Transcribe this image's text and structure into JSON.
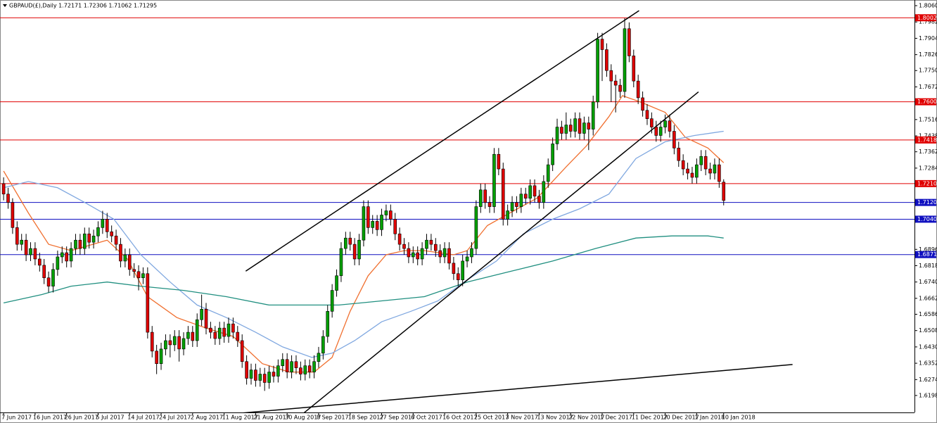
{
  "chart_data": {
    "type": "candlestick",
    "title": "GBPAUD(£),Daily  1.72171 1.72306 1.71062 1.71295",
    "xlim": [
      -0.8,
      202.4
    ],
    "ylim": [
      1.6117,
      1.8087
    ],
    "yticks": [
      {
        "value": 1.806,
        "label": "1.80600"
      },
      {
        "value": 1.7982,
        "label": "1.79820"
      },
      {
        "value": 1.7904,
        "label": "1.79040"
      },
      {
        "value": 1.7826,
        "label": "1.78260"
      },
      {
        "value": 1.775,
        "label": "1.77500"
      },
      {
        "value": 1.7672,
        "label": "1.76720"
      },
      {
        "value": 1.7516,
        "label": "1.75160"
      },
      {
        "value": 1.7438,
        "label": "1.74380"
      },
      {
        "value": 1.7362,
        "label": "1.73620"
      },
      {
        "value": 1.7284,
        "label": "1.72840"
      },
      {
        "value": 1.6896,
        "label": "1.68960"
      },
      {
        "value": 1.6818,
        "label": "1.68180"
      },
      {
        "value": 1.674,
        "label": "1.67400"
      },
      {
        "value": 1.6662,
        "label": "1.66620"
      },
      {
        "value": 1.6586,
        "label": "1.65860"
      },
      {
        "value": 1.6508,
        "label": "1.65080"
      },
      {
        "value": 1.643,
        "label": "1.64300"
      },
      {
        "value": 1.6352,
        "label": "1.63520"
      },
      {
        "value": 1.6274,
        "label": "1.62740"
      },
      {
        "value": 1.6198,
        "label": "1.61980"
      }
    ],
    "xticks": [
      {
        "value": 0,
        "label": "7 Jun 2017"
      },
      {
        "value": 7,
        "label": "16 Jun 2017"
      },
      {
        "value": 14,
        "label": "26 Jun 2017"
      },
      {
        "value": 21,
        "label": "5 Jul 2017"
      },
      {
        "value": 28,
        "label": "14 Jul 2017"
      },
      {
        "value": 35,
        "label": "24 Jul 2017"
      },
      {
        "value": 42,
        "label": "2 Aug 2017"
      },
      {
        "value": 49,
        "label": "11 Aug 2017"
      },
      {
        "value": 56,
        "label": "21 Aug 2017"
      },
      {
        "value": 63,
        "label": "30 Aug 2017"
      },
      {
        "value": 70,
        "label": "8 Sep 2017"
      },
      {
        "value": 77,
        "label": "18 Sep 2017"
      },
      {
        "value": 84,
        "label": "27 Sep 2017"
      },
      {
        "value": 91,
        "label": "6 Oct 2017"
      },
      {
        "value": 98,
        "label": "16 Oct 2017"
      },
      {
        "value": 105,
        "label": "25 Oct 2017"
      },
      {
        "value": 112,
        "label": "3 Nov 2017"
      },
      {
        "value": 119,
        "label": "13 Nov 2017"
      },
      {
        "value": 126,
        "label": "22 Nov 2017"
      },
      {
        "value": 133,
        "label": "1 Dec 2017"
      },
      {
        "value": 140,
        "label": "11 Dec 2017"
      },
      {
        "value": 147,
        "label": "20 Dec 2017"
      },
      {
        "value": 154,
        "label": "1 Jan 2018"
      },
      {
        "value": 160,
        "label": "10 Jan 2018"
      }
    ],
    "up_color": "#00a000",
    "down_color": "#e00000",
    "candles": {
      "open": [
        1.721,
        1.716,
        1.712,
        1.7,
        1.692,
        1.694,
        1.687,
        1.69,
        1.685,
        1.682,
        1.676,
        1.672,
        1.68,
        1.686,
        1.688,
        1.684,
        1.69,
        1.694,
        1.69,
        1.697,
        1.693,
        1.696,
        1.7,
        1.704,
        1.698,
        1.696,
        1.692,
        1.684,
        1.687,
        1.68,
        1.679,
        1.676,
        1.678,
        1.65,
        1.641,
        1.635,
        1.642,
        1.646,
        1.644,
        1.648,
        1.642,
        1.647,
        1.65,
        1.646,
        1.656,
        1.661,
        1.652,
        1.65,
        1.647,
        1.652,
        1.648,
        1.654,
        1.65,
        1.646,
        1.636,
        1.628,
        1.632,
        1.627,
        1.63,
        1.626,
        1.631,
        1.629,
        1.634,
        1.637,
        1.631,
        1.636,
        1.633,
        1.63,
        1.634,
        1.631,
        1.636,
        1.64,
        1.648,
        1.66,
        1.67,
        1.677,
        1.69,
        1.695,
        1.692,
        1.685,
        1.694,
        1.71,
        1.7,
        1.703,
        1.699,
        1.706,
        1.708,
        1.704,
        1.697,
        1.692,
        1.69,
        1.686,
        1.688,
        1.685,
        1.69,
        1.694,
        1.692,
        1.689,
        1.686,
        1.69,
        1.683,
        1.678,
        1.675,
        1.684,
        1.686,
        1.69,
        1.71,
        1.718,
        1.712,
        1.71,
        1.735,
        1.728,
        1.704,
        1.708,
        1.712,
        1.71,
        1.716,
        1.714,
        1.72,
        1.715,
        1.712,
        1.722,
        1.73,
        1.74,
        1.748,
        1.745,
        1.749,
        1.746,
        1.752,
        1.745,
        1.75,
        1.747,
        1.76,
        1.79,
        1.785,
        1.775,
        1.77,
        1.768,
        1.765,
        1.795,
        1.782,
        1.77,
        1.762,
        1.756,
        1.752,
        1.748,
        1.744,
        1.748,
        1.751,
        1.746,
        1.738,
        1.732,
        1.728,
        1.726,
        1.724,
        1.73,
        1.734,
        1.728,
        1.726,
        1.73,
        1.72171
      ],
      "high": [
        1.724,
        1.719,
        1.714,
        1.703,
        1.697,
        1.697,
        1.693,
        1.693,
        1.688,
        1.685,
        1.679,
        1.683,
        1.689,
        1.691,
        1.691,
        1.693,
        1.697,
        1.697,
        1.7,
        1.7,
        1.699,
        1.703,
        1.708,
        1.707,
        1.701,
        1.699,
        1.695,
        1.69,
        1.69,
        1.683,
        1.682,
        1.681,
        1.681,
        1.653,
        1.644,
        1.645,
        1.649,
        1.649,
        1.651,
        1.651,
        1.65,
        1.653,
        1.653,
        1.659,
        1.668,
        1.664,
        1.655,
        1.653,
        1.655,
        1.655,
        1.657,
        1.657,
        1.653,
        1.649,
        1.639,
        1.635,
        1.635,
        1.633,
        1.633,
        1.634,
        1.634,
        1.637,
        1.64,
        1.64,
        1.639,
        1.639,
        1.636,
        1.637,
        1.637,
        1.639,
        1.643,
        1.651,
        1.663,
        1.673,
        1.68,
        1.693,
        1.698,
        1.698,
        1.695,
        1.697,
        1.713,
        1.713,
        1.706,
        1.706,
        1.709,
        1.711,
        1.711,
        1.707,
        1.7,
        1.695,
        1.693,
        1.691,
        1.691,
        1.693,
        1.697,
        1.697,
        1.695,
        1.692,
        1.693,
        1.693,
        1.686,
        1.681,
        1.687,
        1.689,
        1.693,
        1.713,
        1.721,
        1.721,
        1.715,
        1.738,
        1.738,
        1.731,
        1.711,
        1.715,
        1.715,
        1.719,
        1.719,
        1.723,
        1.723,
        1.718,
        1.725,
        1.733,
        1.743,
        1.752,
        1.751,
        1.755,
        1.752,
        1.755,
        1.755,
        1.753,
        1.753,
        1.763,
        1.793,
        1.793,
        1.788,
        1.778,
        1.773,
        1.771,
        1.8,
        1.798,
        1.785,
        1.773,
        1.765,
        1.759,
        1.755,
        1.751,
        1.751,
        1.754,
        1.754,
        1.749,
        1.741,
        1.735,
        1.731,
        1.729,
        1.733,
        1.737,
        1.737,
        1.731,
        1.733,
        1.733,
        1.72306
      ],
      "low": [
        1.713,
        1.709,
        1.697,
        1.689,
        1.689,
        1.684,
        1.684,
        1.682,
        1.679,
        1.673,
        1.669,
        1.669,
        1.677,
        1.683,
        1.681,
        1.681,
        1.687,
        1.687,
        1.687,
        1.69,
        1.69,
        1.693,
        1.697,
        1.695,
        1.693,
        1.689,
        1.681,
        1.681,
        1.677,
        1.676,
        1.67,
        1.673,
        1.647,
        1.638,
        1.63,
        1.632,
        1.639,
        1.638,
        1.641,
        1.636,
        1.639,
        1.644,
        1.643,
        1.643,
        1.653,
        1.649,
        1.647,
        1.644,
        1.644,
        1.645,
        1.645,
        1.647,
        1.643,
        1.633,
        1.625,
        1.625,
        1.624,
        1.624,
        1.622,
        1.623,
        1.626,
        1.626,
        1.631,
        1.628,
        1.628,
        1.63,
        1.627,
        1.627,
        1.628,
        1.628,
        1.633,
        1.637,
        1.645,
        1.657,
        1.667,
        1.674,
        1.687,
        1.689,
        1.682,
        1.682,
        1.691,
        1.697,
        1.697,
        1.696,
        1.696,
        1.703,
        1.701,
        1.694,
        1.689,
        1.687,
        1.683,
        1.683,
        1.682,
        1.682,
        1.687,
        1.689,
        1.686,
        1.683,
        1.683,
        1.68,
        1.675,
        1.672,
        1.672,
        1.681,
        1.683,
        1.687,
        1.707,
        1.709,
        1.707,
        1.707,
        1.725,
        1.701,
        1.701,
        1.705,
        1.707,
        1.707,
        1.711,
        1.711,
        1.712,
        1.709,
        1.709,
        1.719,
        1.727,
        1.737,
        1.742,
        1.742,
        1.743,
        1.743,
        1.742,
        1.742,
        1.737,
        1.744,
        1.757,
        1.77,
        1.772,
        1.76,
        1.755,
        1.762,
        1.762,
        1.779,
        1.767,
        1.759,
        1.753,
        1.749,
        1.745,
        1.741,
        1.741,
        1.745,
        1.743,
        1.735,
        1.729,
        1.725,
        1.723,
        1.721,
        1.721,
        1.727,
        1.725,
        1.723,
        1.723,
        1.719,
        1.71062
      ],
      "close": [
        1.716,
        1.712,
        1.7,
        1.692,
        1.694,
        1.687,
        1.69,
        1.685,
        1.682,
        1.676,
        1.672,
        1.68,
        1.686,
        1.688,
        1.684,
        1.69,
        1.694,
        1.69,
        1.697,
        1.693,
        1.696,
        1.7,
        1.704,
        1.698,
        1.696,
        1.692,
        1.684,
        1.687,
        1.68,
        1.679,
        1.676,
        1.678,
        1.65,
        1.641,
        1.635,
        1.642,
        1.646,
        1.644,
        1.648,
        1.642,
        1.647,
        1.65,
        1.646,
        1.656,
        1.661,
        1.652,
        1.65,
        1.647,
        1.652,
        1.648,
        1.654,
        1.65,
        1.646,
        1.636,
        1.628,
        1.632,
        1.627,
        1.63,
        1.626,
        1.631,
        1.629,
        1.634,
        1.637,
        1.631,
        1.636,
        1.633,
        1.63,
        1.634,
        1.631,
        1.636,
        1.64,
        1.648,
        1.66,
        1.67,
        1.677,
        1.69,
        1.695,
        1.692,
        1.685,
        1.694,
        1.71,
        1.7,
        1.703,
        1.699,
        1.706,
        1.708,
        1.704,
        1.697,
        1.692,
        1.69,
        1.686,
        1.688,
        1.685,
        1.69,
        1.694,
        1.692,
        1.689,
        1.686,
        1.69,
        1.683,
        1.678,
        1.675,
        1.684,
        1.686,
        1.69,
        1.71,
        1.718,
        1.712,
        1.71,
        1.735,
        1.728,
        1.704,
        1.708,
        1.712,
        1.71,
        1.716,
        1.714,
        1.72,
        1.715,
        1.712,
        1.722,
        1.73,
        1.74,
        1.748,
        1.745,
        1.749,
        1.746,
        1.752,
        1.745,
        1.75,
        1.747,
        1.76,
        1.79,
        1.785,
        1.775,
        1.77,
        1.768,
        1.765,
        1.795,
        1.782,
        1.77,
        1.762,
        1.756,
        1.752,
        1.748,
        1.744,
        1.748,
        1.751,
        1.746,
        1.738,
        1.732,
        1.728,
        1.726,
        1.724,
        1.73,
        1.734,
        1.728,
        1.726,
        1.73,
        1.722,
        1.71295
      ]
    },
    "ma": [
      {
        "color": "#f07030",
        "x": [
          0,
          5.5,
          10,
          15,
          23,
          27.5,
          32,
          38.5,
          45,
          51,
          57.5,
          63.5,
          69,
          73,
          77,
          81,
          85,
          89,
          93.5,
          100,
          103,
          107.5,
          112.5,
          118.5,
          125,
          129.5,
          134.5,
          137.5,
          141.5,
          147,
          151.5,
          156.5,
          160
        ],
        "values": [
          1.727,
          1.707,
          1.692,
          1.689,
          1.694,
          1.685,
          1.667,
          1.657,
          1.652,
          1.648,
          1.635,
          1.631,
          1.631,
          1.638,
          1.66,
          1.677,
          1.687,
          1.689,
          1.689,
          1.687,
          1.689,
          1.701,
          1.707,
          1.714,
          1.729,
          1.739,
          1.753,
          1.763,
          1.76,
          1.755,
          1.743,
          1.738,
          1.731
        ]
      },
      {
        "color": "#80a8e0",
        "x": [
          0,
          5.5,
          12,
          18,
          24.5,
          30.5,
          37,
          43,
          49.5,
          56,
          62,
          68.5,
          73,
          78,
          84,
          90.5,
          96.5,
          103,
          109.5,
          115.5,
          122,
          128,
          134.5,
          140.5,
          147,
          153.5,
          160
        ],
        "values": [
          1.719,
          1.722,
          1.719,
          1.712,
          1.704,
          1.687,
          1.674,
          1.663,
          1.657,
          1.65,
          1.643,
          1.638,
          1.64,
          1.646,
          1.655,
          1.66,
          1.665,
          1.675,
          1.684,
          1.697,
          1.704,
          1.709,
          1.716,
          1.733,
          1.741,
          1.744,
          1.746
        ]
      },
      {
        "color": "#208f80",
        "x": [
          0,
          8.5,
          15,
          23,
          30.5,
          40,
          49.5,
          59,
          67,
          74.5,
          84,
          93.5,
          103,
          112.5,
          122,
          131.5,
          140.5,
          148.5,
          156.5,
          160
        ],
        "values": [
          1.664,
          1.668,
          1.672,
          1.674,
          1.672,
          1.67,
          1.667,
          1.663,
          1.663,
          1.663,
          1.665,
          1.667,
          1.674,
          1.679,
          1.684,
          1.69,
          1.695,
          1.696,
          1.696,
          1.695
        ]
      }
    ],
    "trendlines": [
      {
        "x": [
          53.8,
          141.2
        ],
        "y": [
          1.6792,
          1.8036
        ]
      },
      {
        "x": [
          66.8,
          154.4
        ],
        "y": [
          1.6116,
          1.7648
        ]
      },
      {
        "x": [
          48.7,
          175.3
        ],
        "y": [
          1.6106,
          1.6346
        ]
      }
    ],
    "levels": [
      {
        "value": 1.80021,
        "label": "1.80021",
        "color": "#e00000"
      },
      {
        "value": 1.76009,
        "label": "1.76009",
        "color": "#e00000"
      },
      {
        "value": 1.74185,
        "label": "1.74185",
        "color": "#e00000"
      },
      {
        "value": 1.721,
        "label": "1.72100",
        "color": "#e00000"
      },
      {
        "value": 1.712,
        "label": "1.71200",
        "color": "#1010c0"
      },
      {
        "value": 1.704,
        "label": "1.70400",
        "color": "#1010c0"
      },
      {
        "value": 1.6871,
        "label": "1.68710",
        "color": "#1010c0"
      }
    ]
  }
}
